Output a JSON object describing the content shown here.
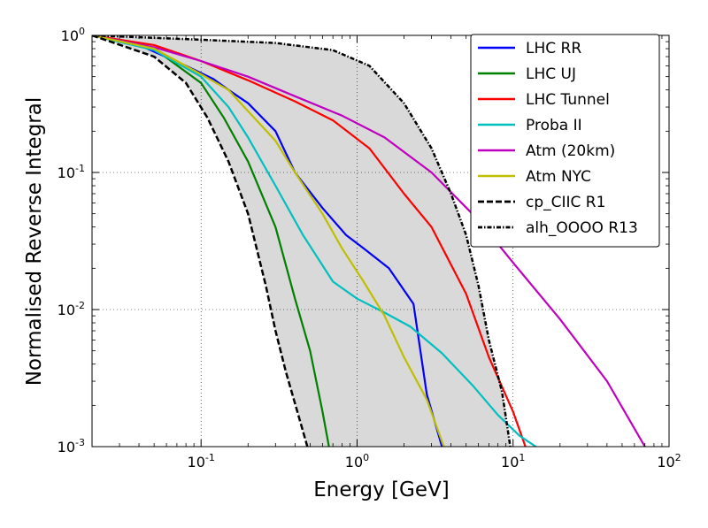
{
  "chart_data": {
    "type": "line",
    "xscale": "log",
    "yscale": "log",
    "xlim": [
      0.02,
      100
    ],
    "ylim": [
      0.001,
      1
    ],
    "xlabel": "Energy [GeV]",
    "ylabel": "Normalised Reverse Integral",
    "grid": "dotted",
    "legend_position": "top-right",
    "x_ticks": [
      {
        "value": 0.1,
        "base": "10",
        "exp": "-1"
      },
      {
        "value": 1,
        "base": "10",
        "exp": "0"
      },
      {
        "value": 10,
        "base": "10",
        "exp": "1"
      },
      {
        "value": 100,
        "base": "10",
        "exp": "2"
      }
    ],
    "y_ticks": [
      {
        "value": 1,
        "base": "10",
        "exp": "0"
      },
      {
        "value": 0.1,
        "base": "10",
        "exp": "-1"
      },
      {
        "value": 0.01,
        "base": "10",
        "exp": "-2"
      },
      {
        "value": 0.001,
        "base": "10",
        "exp": "-3"
      }
    ],
    "band_fill": "#d9d9d9",
    "series": [
      {
        "name": "LHC RR",
        "color": "#0000ff",
        "style": "solid",
        "points": [
          [
            0.02,
            1.0
          ],
          [
            0.04,
            0.85
          ],
          [
            0.08,
            0.6
          ],
          [
            0.12,
            0.48
          ],
          [
            0.15,
            0.4
          ],
          [
            0.2,
            0.32
          ],
          [
            0.3,
            0.2
          ],
          [
            0.4,
            0.1
          ],
          [
            0.6,
            0.055
          ],
          [
            0.85,
            0.035
          ],
          [
            1.1,
            0.028
          ],
          [
            1.6,
            0.02
          ],
          [
            2.3,
            0.011
          ],
          [
            2.8,
            0.0024
          ],
          [
            3.5,
            0.001
          ]
        ]
      },
      {
        "name": "LHC UJ",
        "color": "#008000",
        "style": "solid",
        "points": [
          [
            0.02,
            1.0
          ],
          [
            0.05,
            0.8
          ],
          [
            0.1,
            0.45
          ],
          [
            0.14,
            0.25
          ],
          [
            0.2,
            0.12
          ],
          [
            0.3,
            0.04
          ],
          [
            0.4,
            0.012
          ],
          [
            0.5,
            0.005
          ],
          [
            0.6,
            0.0018
          ],
          [
            0.66,
            0.001
          ]
        ]
      },
      {
        "name": "LHC Tunnel",
        "color": "#ff0000",
        "style": "solid",
        "points": [
          [
            0.02,
            1.0
          ],
          [
            0.05,
            0.85
          ],
          [
            0.1,
            0.65
          ],
          [
            0.2,
            0.47
          ],
          [
            0.4,
            0.33
          ],
          [
            0.7,
            0.24
          ],
          [
            1.2,
            0.15
          ],
          [
            2.0,
            0.07
          ],
          [
            3.0,
            0.04
          ],
          [
            5.0,
            0.013
          ],
          [
            7.0,
            0.0045
          ],
          [
            10.0,
            0.0018
          ],
          [
            12.0,
            0.001
          ]
        ]
      },
      {
        "name": "Proba II",
        "color": "#00bfbf",
        "style": "solid",
        "points": [
          [
            0.02,
            1.0
          ],
          [
            0.05,
            0.78
          ],
          [
            0.1,
            0.5
          ],
          [
            0.15,
            0.3
          ],
          [
            0.2,
            0.18
          ],
          [
            0.3,
            0.08
          ],
          [
            0.45,
            0.035
          ],
          [
            0.7,
            0.016
          ],
          [
            1.0,
            0.012
          ],
          [
            1.5,
            0.0095
          ],
          [
            2.2,
            0.0075
          ],
          [
            3.5,
            0.0048
          ],
          [
            5.5,
            0.0028
          ],
          [
            8.0,
            0.0017
          ],
          [
            11.0,
            0.0012
          ],
          [
            14.0,
            0.001
          ]
        ]
      },
      {
        "name": "Atm (20km)",
        "color": "#bf00bf",
        "style": "solid",
        "points": [
          [
            0.02,
            1.0
          ],
          [
            0.05,
            0.82
          ],
          [
            0.1,
            0.65
          ],
          [
            0.2,
            0.5
          ],
          [
            0.4,
            0.36
          ],
          [
            0.8,
            0.26
          ],
          [
            1.5,
            0.18
          ],
          [
            3.0,
            0.1
          ],
          [
            6.0,
            0.045
          ],
          [
            10.0,
            0.022
          ],
          [
            20.0,
            0.0085
          ],
          [
            40.0,
            0.003
          ],
          [
            70.0,
            0.001
          ]
        ]
      },
      {
        "name": "Atm NYC",
        "color": "#bfbf00",
        "style": "solid",
        "points": [
          [
            0.02,
            1.0
          ],
          [
            0.05,
            0.8
          ],
          [
            0.1,
            0.52
          ],
          [
            0.15,
            0.4
          ],
          [
            0.2,
            0.28
          ],
          [
            0.3,
            0.17
          ],
          [
            0.4,
            0.1
          ],
          [
            0.6,
            0.05
          ],
          [
            0.8,
            0.028
          ],
          [
            1.1,
            0.016
          ],
          [
            1.5,
            0.009
          ],
          [
            2.0,
            0.0045
          ],
          [
            2.8,
            0.0022
          ],
          [
            3.6,
            0.001
          ]
        ]
      },
      {
        "name": "cp_CIIC R1",
        "color": "#000000",
        "style": "dashed",
        "points": [
          [
            0.02,
            1.0
          ],
          [
            0.05,
            0.7
          ],
          [
            0.08,
            0.45
          ],
          [
            0.11,
            0.25
          ],
          [
            0.15,
            0.12
          ],
          [
            0.2,
            0.05
          ],
          [
            0.26,
            0.015
          ],
          [
            0.3,
            0.007
          ],
          [
            0.35,
            0.0035
          ],
          [
            0.42,
            0.0017
          ],
          [
            0.48,
            0.001
          ]
        ]
      },
      {
        "name": "alh_OOOO R13",
        "color": "#000000",
        "style": "dashdot",
        "points": [
          [
            0.02,
            1.0
          ],
          [
            0.1,
            0.93
          ],
          [
            0.3,
            0.88
          ],
          [
            0.7,
            0.78
          ],
          [
            1.2,
            0.6
          ],
          [
            2.0,
            0.32
          ],
          [
            3.0,
            0.15
          ],
          [
            4.0,
            0.07
          ],
          [
            5.0,
            0.035
          ],
          [
            6.0,
            0.015
          ],
          [
            7.0,
            0.006
          ],
          [
            8.5,
            0.0025
          ],
          [
            9.6,
            0.001
          ]
        ]
      }
    ]
  }
}
